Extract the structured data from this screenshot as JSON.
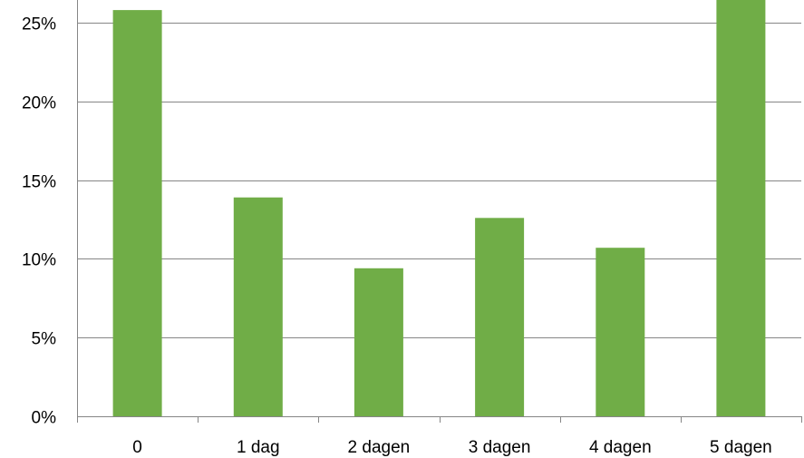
{
  "chart_data": {
    "type": "bar",
    "title": "",
    "xlabel": "",
    "ylabel": "",
    "categories": [
      "0",
      "1 dag",
      "2 dagen",
      "3 dagen",
      "4 dagen",
      "5 dagen"
    ],
    "values": [
      25.8,
      13.9,
      9.4,
      12.6,
      10.7,
      26.8
    ],
    "ylim": [
      0,
      27
    ],
    "yticks": [
      0,
      5,
      10,
      15,
      20,
      25
    ],
    "ytick_labels": [
      "0%",
      "5%",
      "10%",
      "15%",
      "20%",
      "25%"
    ],
    "bar_color": "#70AD47",
    "grid": true,
    "legend": "none"
  }
}
